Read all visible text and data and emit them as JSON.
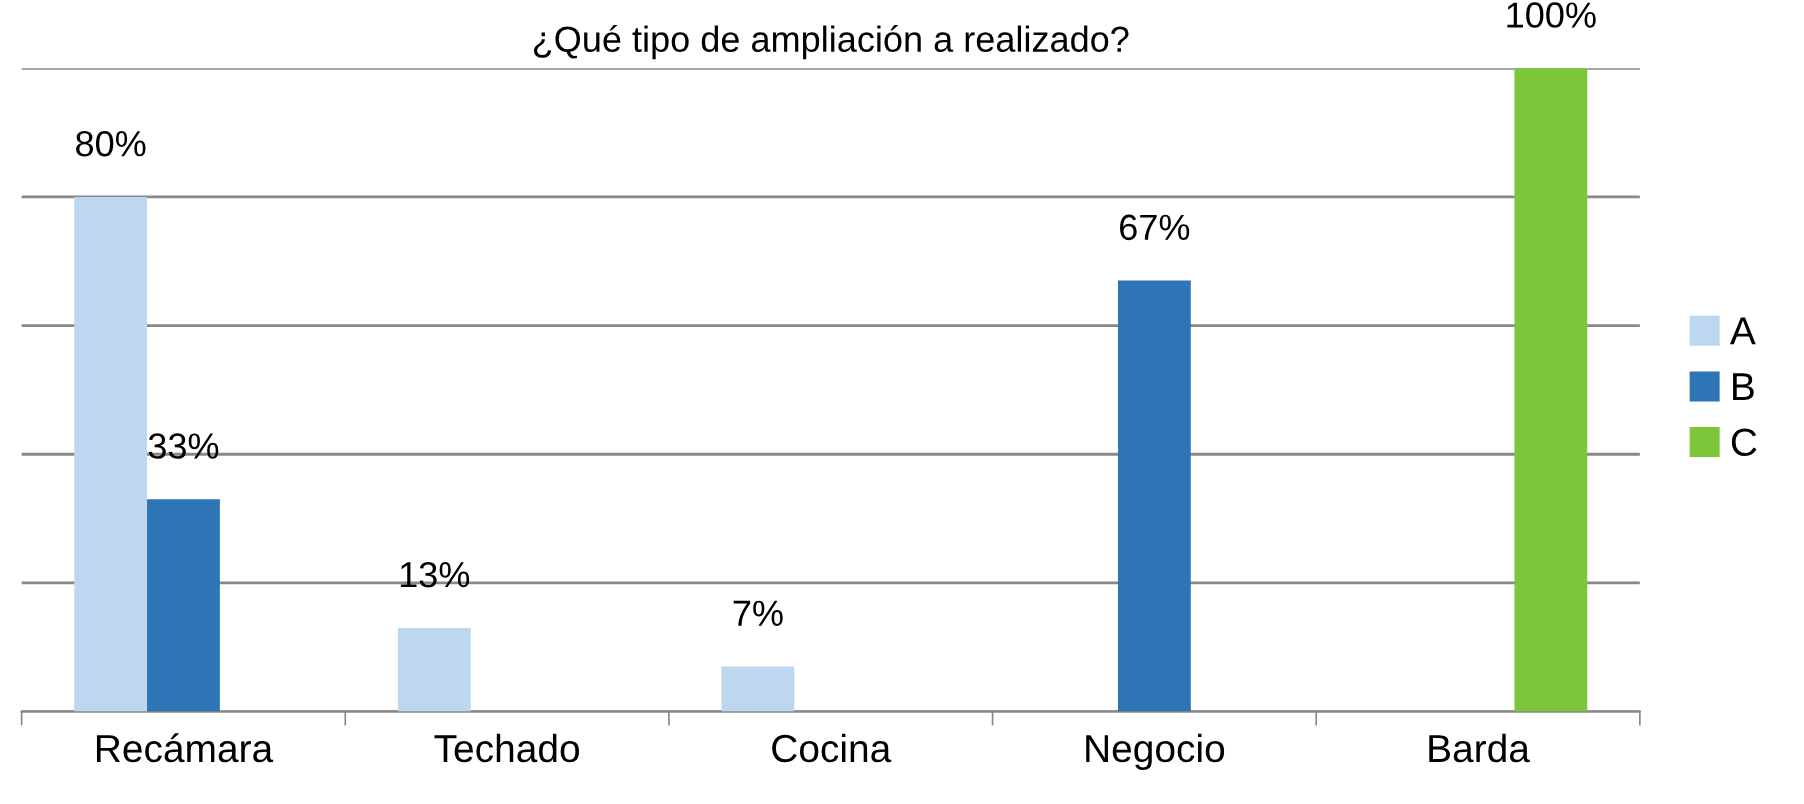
{
  "chart_data": {
    "type": "bar",
    "title": "¿Qué tipo de ampliación a realizado?",
    "categories": [
      "Recámara",
      "Techado",
      "Cocina",
      "Negocio",
      "Barda"
    ],
    "series": [
      {
        "name": "A",
        "color": "#bdd7ee",
        "values": [
          80,
          13,
          7,
          null,
          null
        ],
        "value_labels": [
          "80%",
          "13%",
          "7%",
          null,
          null
        ]
      },
      {
        "name": "B",
        "color": "#2e75b6",
        "values": [
          33,
          null,
          null,
          67,
          null
        ],
        "value_labels": [
          "33%",
          null,
          null,
          "67%",
          null
        ]
      },
      {
        "name": "C",
        "color": "#7dc63a",
        "values": [
          null,
          null,
          null,
          null,
          100
        ],
        "value_labels": [
          null,
          null,
          null,
          null,
          "100%"
        ]
      }
    ],
    "ylim": [
      0,
      100
    ],
    "yticks": [
      {
        "value": 0,
        "label": null
      },
      {
        "value": 20,
        "label": null
      },
      {
        "value": 40,
        "label": null
      },
      {
        "value": 60,
        "label": null
      },
      {
        "value": 80,
        "label": null
      },
      {
        "value": 100,
        "label": null
      }
    ],
    "tick_labels": "x",
    "grid": "y",
    "legend": "right"
  }
}
